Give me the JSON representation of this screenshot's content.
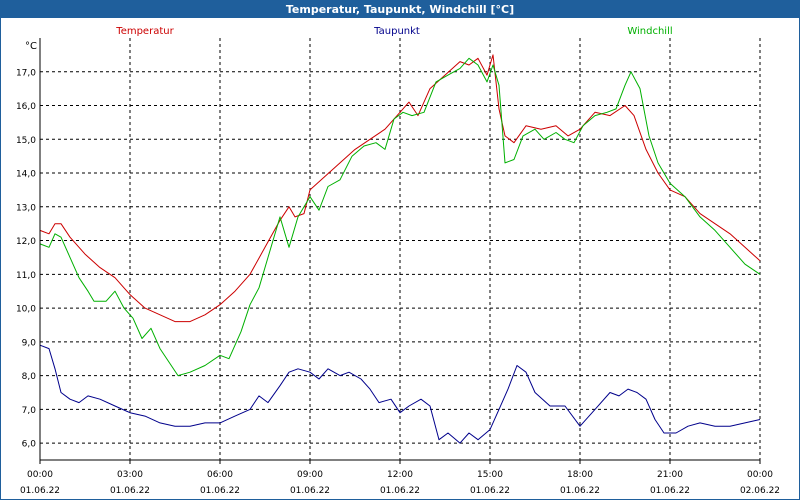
{
  "chart_data": {
    "type": "line",
    "title": "Temperatur, Taupunkt, Windchill [°C]",
    "ylabel": "°C",
    "ylim": [
      5.5,
      18.0
    ],
    "y_ticks": [
      "6,0",
      "7,0",
      "8,0",
      "9,0",
      "10,0",
      "11,0",
      "12,0",
      "13,0",
      "14,0",
      "15,0",
      "16,0",
      "17,0"
    ],
    "y_tick_values": [
      6,
      7,
      8,
      9,
      10,
      11,
      12,
      13,
      14,
      15,
      16,
      17
    ],
    "x_range_hours": [
      0,
      24
    ],
    "x_tick_hours": [
      0,
      3,
      6,
      9,
      12,
      15,
      18,
      21,
      24
    ],
    "x_tick_times": [
      "00:00",
      "03:00",
      "06:00",
      "09:00",
      "12:00",
      "15:00",
      "18:00",
      "21:00",
      "00:00"
    ],
    "x_tick_dates": [
      "01.06.22",
      "01.06.22",
      "01.06.22",
      "01.06.22",
      "01.06.22",
      "01.06.22",
      "01.06.22",
      "01.06.22",
      "02.06.22"
    ],
    "grid": true,
    "series": [
      {
        "name": "Temperatur",
        "color": "#cc0000",
        "points": [
          [
            0,
            12.3
          ],
          [
            0.3,
            12.2
          ],
          [
            0.5,
            12.5
          ],
          [
            0.7,
            12.5
          ],
          [
            1,
            12.1
          ],
          [
            1.5,
            11.6
          ],
          [
            2,
            11.2
          ],
          [
            2.5,
            10.9
          ],
          [
            3,
            10.4
          ],
          [
            3.5,
            10.0
          ],
          [
            4,
            9.8
          ],
          [
            4.5,
            9.6
          ],
          [
            5,
            9.6
          ],
          [
            5.5,
            9.8
          ],
          [
            6,
            10.1
          ],
          [
            6.5,
            10.5
          ],
          [
            7,
            11.0
          ],
          [
            7.5,
            11.8
          ],
          [
            8,
            12.6
          ],
          [
            8.3,
            13.0
          ],
          [
            8.5,
            12.7
          ],
          [
            8.8,
            12.8
          ],
          [
            9,
            13.5
          ],
          [
            9.5,
            13.9
          ],
          [
            10,
            14.3
          ],
          [
            10.5,
            14.7
          ],
          [
            11,
            15.0
          ],
          [
            11.5,
            15.3
          ],
          [
            12,
            15.8
          ],
          [
            12.3,
            16.1
          ],
          [
            12.6,
            15.7
          ],
          [
            13,
            16.5
          ],
          [
            13.5,
            16.9
          ],
          [
            14,
            17.3
          ],
          [
            14.3,
            17.2
          ],
          [
            14.6,
            17.4
          ],
          [
            14.9,
            16.9
          ],
          [
            15.1,
            17.5
          ],
          [
            15.3,
            15.9
          ],
          [
            15.5,
            15.1
          ],
          [
            15.8,
            14.9
          ],
          [
            16.2,
            15.4
          ],
          [
            16.7,
            15.3
          ],
          [
            17.2,
            15.4
          ],
          [
            17.6,
            15.1
          ],
          [
            18,
            15.3
          ],
          [
            18.5,
            15.8
          ],
          [
            19,
            15.7
          ],
          [
            19.5,
            16.0
          ],
          [
            19.8,
            15.7
          ],
          [
            20.2,
            14.7
          ],
          [
            20.6,
            14.0
          ],
          [
            21,
            13.5
          ],
          [
            21.5,
            13.3
          ],
          [
            22,
            12.8
          ],
          [
            22.5,
            12.5
          ],
          [
            23,
            12.2
          ],
          [
            23.5,
            11.8
          ],
          [
            24,
            11.4
          ]
        ]
      },
      {
        "name": "Taupunkt",
        "color": "#00008b",
        "points": [
          [
            0,
            8.9
          ],
          [
            0.3,
            8.8
          ],
          [
            0.5,
            8.2
          ],
          [
            0.7,
            7.5
          ],
          [
            1,
            7.3
          ],
          [
            1.3,
            7.2
          ],
          [
            1.6,
            7.4
          ],
          [
            2,
            7.3
          ],
          [
            2.5,
            7.1
          ],
          [
            3,
            6.9
          ],
          [
            3.5,
            6.8
          ],
          [
            4,
            6.6
          ],
          [
            4.5,
            6.5
          ],
          [
            5,
            6.5
          ],
          [
            5.5,
            6.6
          ],
          [
            6,
            6.6
          ],
          [
            6.5,
            6.8
          ],
          [
            7,
            7.0
          ],
          [
            7.3,
            7.4
          ],
          [
            7.6,
            7.2
          ],
          [
            8,
            7.7
          ],
          [
            8.3,
            8.1
          ],
          [
            8.6,
            8.2
          ],
          [
            9,
            8.1
          ],
          [
            9.3,
            7.9
          ],
          [
            9.6,
            8.2
          ],
          [
            10,
            8.0
          ],
          [
            10.3,
            8.1
          ],
          [
            10.7,
            7.9
          ],
          [
            11,
            7.6
          ],
          [
            11.3,
            7.2
          ],
          [
            11.7,
            7.3
          ],
          [
            12,
            6.9
          ],
          [
            12.3,
            7.1
          ],
          [
            12.7,
            7.3
          ],
          [
            13,
            7.1
          ],
          [
            13.3,
            6.1
          ],
          [
            13.6,
            6.3
          ],
          [
            14,
            6.0
          ],
          [
            14.3,
            6.3
          ],
          [
            14.6,
            6.1
          ],
          [
            15,
            6.4
          ],
          [
            15.3,
            7.0
          ],
          [
            15.6,
            7.6
          ],
          [
            15.9,
            8.3
          ],
          [
            16.2,
            8.1
          ],
          [
            16.5,
            7.5
          ],
          [
            17,
            7.1
          ],
          [
            17.5,
            7.1
          ],
          [
            18,
            6.5
          ],
          [
            18.5,
            7.0
          ],
          [
            19,
            7.5
          ],
          [
            19.3,
            7.4
          ],
          [
            19.6,
            7.6
          ],
          [
            19.9,
            7.5
          ],
          [
            20.2,
            7.3
          ],
          [
            20.5,
            6.7
          ],
          [
            20.8,
            6.3
          ],
          [
            21.2,
            6.3
          ],
          [
            21.6,
            6.5
          ],
          [
            22,
            6.6
          ],
          [
            22.5,
            6.5
          ],
          [
            23,
            6.5
          ],
          [
            23.5,
            6.6
          ],
          [
            24,
            6.7
          ]
        ]
      },
      {
        "name": "Windchill",
        "color": "#00b000",
        "points": [
          [
            0,
            11.9
          ],
          [
            0.3,
            11.8
          ],
          [
            0.5,
            12.2
          ],
          [
            0.7,
            12.1
          ],
          [
            1,
            11.5
          ],
          [
            1.3,
            10.9
          ],
          [
            1.6,
            10.5
          ],
          [
            1.8,
            10.2
          ],
          [
            2.2,
            10.2
          ],
          [
            2.5,
            10.5
          ],
          [
            2.8,
            10.0
          ],
          [
            3.1,
            9.7
          ],
          [
            3.4,
            9.1
          ],
          [
            3.7,
            9.4
          ],
          [
            4,
            8.8
          ],
          [
            4.3,
            8.4
          ],
          [
            4.6,
            8.0
          ],
          [
            5,
            8.1
          ],
          [
            5.5,
            8.3
          ],
          [
            6,
            8.6
          ],
          [
            6.3,
            8.5
          ],
          [
            6.7,
            9.3
          ],
          [
            7,
            10.1
          ],
          [
            7.3,
            10.6
          ],
          [
            7.6,
            11.5
          ],
          [
            8,
            12.7
          ],
          [
            8.3,
            11.8
          ],
          [
            8.6,
            12.7
          ],
          [
            9,
            13.3
          ],
          [
            9.3,
            12.9
          ],
          [
            9.6,
            13.6
          ],
          [
            10,
            13.8
          ],
          [
            10.4,
            14.5
          ],
          [
            10.8,
            14.8
          ],
          [
            11.2,
            14.9
          ],
          [
            11.5,
            14.7
          ],
          [
            11.8,
            15.6
          ],
          [
            12.1,
            15.8
          ],
          [
            12.4,
            15.7
          ],
          [
            12.8,
            15.8
          ],
          [
            13.2,
            16.7
          ],
          [
            13.6,
            16.9
          ],
          [
            14,
            17.1
          ],
          [
            14.3,
            17.4
          ],
          [
            14.6,
            17.2
          ],
          [
            14.9,
            16.7
          ],
          [
            15.1,
            17.2
          ],
          [
            15.3,
            16.6
          ],
          [
            15.5,
            14.3
          ],
          [
            15.8,
            14.4
          ],
          [
            16.1,
            15.1
          ],
          [
            16.5,
            15.3
          ],
          [
            16.8,
            15.0
          ],
          [
            17.2,
            15.2
          ],
          [
            17.5,
            15.0
          ],
          [
            17.8,
            14.9
          ],
          [
            18.1,
            15.4
          ],
          [
            18.5,
            15.7
          ],
          [
            18.9,
            15.8
          ],
          [
            19.2,
            15.9
          ],
          [
            19.5,
            16.6
          ],
          [
            19.7,
            17.0
          ],
          [
            20,
            16.5
          ],
          [
            20.3,
            15.1
          ],
          [
            20.6,
            14.3
          ],
          [
            21,
            13.7
          ],
          [
            21.5,
            13.3
          ],
          [
            22,
            12.7
          ],
          [
            22.5,
            12.3
          ],
          [
            23,
            11.8
          ],
          [
            23.5,
            11.3
          ],
          [
            24,
            11.0
          ]
        ]
      }
    ]
  }
}
